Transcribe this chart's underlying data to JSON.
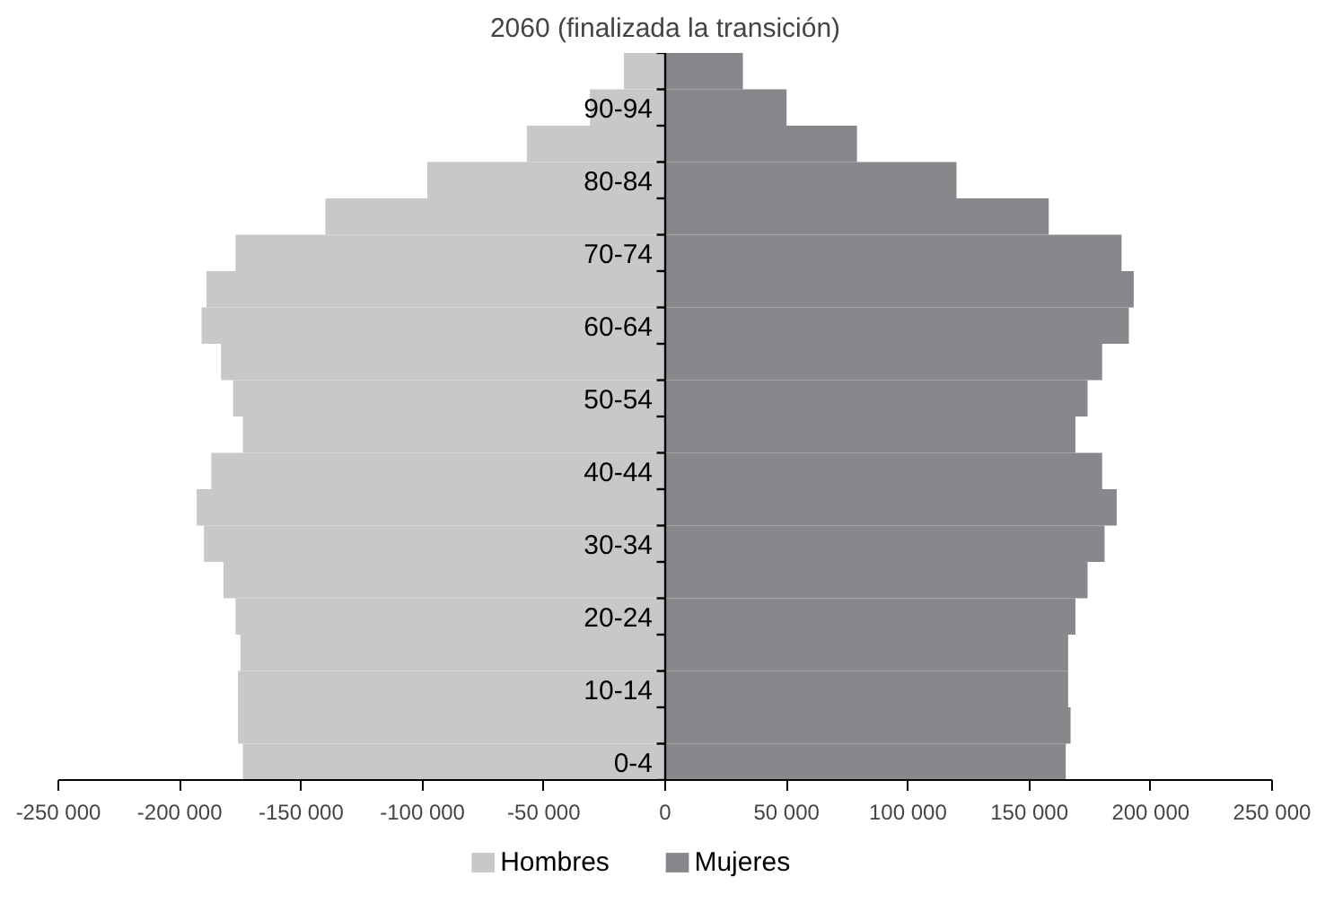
{
  "chart_data": {
    "type": "bar",
    "orientation": "horizontal",
    "title": "2060 (finalizada la transición)",
    "categories": [
      null,
      "90-94",
      null,
      "80-84",
      null,
      "70-74",
      null,
      "60-64",
      null,
      "50-54",
      null,
      "40-44",
      null,
      "30-34",
      null,
      "20-24",
      null,
      "10-14",
      null,
      "0-4"
    ],
    "series": [
      {
        "name": "Hombres",
        "color": "#c8c8c8",
        "values": [
          -17000,
          -31000,
          -57000,
          -98000,
          -140000,
          -177000,
          -189000,
          -191000,
          -183000,
          -178000,
          -174000,
          -187000,
          -193000,
          -190000,
          -182000,
          -177000,
          -175000,
          -176000,
          -176000,
          -174000
        ]
      },
      {
        "name": "Mujeres",
        "color": "#88878c",
        "values": [
          32000,
          50000,
          79000,
          120000,
          158000,
          188000,
          193000,
          191000,
          180000,
          174000,
          169000,
          180000,
          186000,
          181000,
          174000,
          169000,
          166000,
          166000,
          167000,
          165000
        ]
      }
    ],
    "xlim": [
      -250000,
      250000
    ],
    "xticks": [
      {
        "value": -250000,
        "label": "-250 000"
      },
      {
        "value": -200000,
        "label": "-200 000"
      },
      {
        "value": -150000,
        "label": "-150 000"
      },
      {
        "value": -100000,
        "label": "-100 000"
      },
      {
        "value": -50000,
        "label": "-50 000"
      },
      0,
      {
        "value": 50000,
        "label": "50 000"
      },
      {
        "value": 100000,
        "label": "100 000"
      },
      {
        "value": 150000,
        "label": "150 000"
      },
      {
        "value": 200000,
        "label": "200 000"
      },
      {
        "value": 250000,
        "label": "250 000"
      }
    ],
    "stacked": true,
    "grid": false,
    "legend": "bottom"
  }
}
